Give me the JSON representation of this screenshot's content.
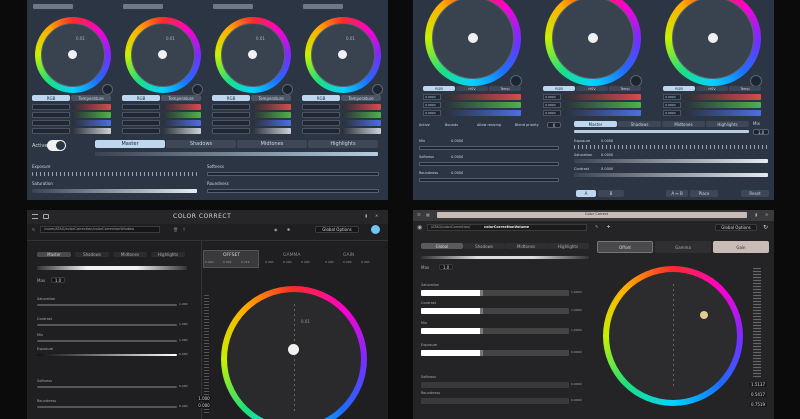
{
  "p1": {
    "wheel_values": [
      "0.01",
      "0.01",
      "0.01",
      "0.01"
    ],
    "wheel_tabs": [
      [
        "RGB",
        "Temperature"
      ],
      [
        "RGB",
        "Temperature"
      ],
      [
        "RGB",
        "Temperature"
      ],
      [
        "RGB",
        "Temperature"
      ]
    ],
    "active_label": "Active",
    "range_tabs": [
      "Master",
      "Shadows",
      "Midtones",
      "Highlights"
    ],
    "exposure": "Exposure",
    "saturation": "Saturation",
    "softness": "Softness",
    "roundness": "Roundness"
  },
  "p2": {
    "wheel_tabs": [
      [
        "RGB",
        "HSV",
        "Temp"
      ],
      [
        "RGB",
        "HSV",
        "Temp"
      ],
      [
        "RGB",
        "HSV",
        "Temp"
      ]
    ],
    "row_values": [
      "0.0000",
      "0.0000",
      "0.0000"
    ],
    "checks": [
      "Active",
      "Bounds",
      "Allow resizing",
      "Blend priority"
    ],
    "priority": "0",
    "range_tabs": [
      "Master",
      "Shadows",
      "Midtones",
      "Highlights"
    ],
    "mix": "Mix",
    "mix_value": "1.0",
    "left_rows": [
      {
        "label": "Mix",
        "value": "0.0000"
      },
      {
        "label": "Softness",
        "value": "0.0000"
      },
      {
        "label": "Roundness",
        "value": "0.0000"
      }
    ],
    "right_rows": [
      {
        "label": "Exposure",
        "value": "0.0000"
      },
      {
        "label": "Saturation",
        "value": "0.0000"
      },
      {
        "label": "Contrast",
        "value": "0.0000"
      }
    ],
    "ab_buttons": [
      "A",
      "B",
      "A ↔ B"
    ],
    "place": "Place",
    "reset": "Reset"
  },
  "p3": {
    "title": "COLOR CORRECT",
    "path": "/room/ATAG/colorCorrection/colorCorrectionWindow",
    "global_options": "Global Options",
    "range_tabs": [
      "Master",
      "Shadows",
      "Midtones",
      "Highlights"
    ],
    "max": "Max",
    "max_value": "1.0",
    "sliders": [
      {
        "label": "Saturation",
        "value": "1.000"
      },
      {
        "label": "Contrast",
        "value": "1.000"
      },
      {
        "label": "Mix",
        "value": "1.000"
      },
      {
        "label": "Exposure",
        "value": "0.000"
      },
      {
        "label": "Softness",
        "value": "0.000"
      },
      {
        "label": "Roundness",
        "value": "0.000"
      }
    ],
    "groups": [
      {
        "name": "OFFSET",
        "values": [
          "0.000",
          "0.002",
          "0.714"
        ]
      },
      {
        "name": "GAMMA",
        "values": [
          "0.000",
          "0.000",
          "0.000"
        ]
      },
      {
        "name": "GAIN",
        "values": [
          "0.000",
          "0.000",
          "0.000"
        ]
      }
    ],
    "wheel_value": "0.01",
    "side_values": [
      "1.000",
      "0.000"
    ]
  },
  "p4": {
    "title": "Color Correct",
    "path_prefix": "/ATAG/colorCorrection/",
    "path_bold": "colorCorrectionVolume",
    "global_options": "Global Options",
    "range_tabs": [
      "Global",
      "Shadows",
      "Midtones",
      "Highlights"
    ],
    "groups": [
      "Offset",
      "Gamma",
      "Gain"
    ],
    "max": "Max",
    "max_value": "1.0",
    "sliders": [
      {
        "label": "Saturation",
        "value": "1.0000"
      },
      {
        "label": "Contrast",
        "value": "1.0000"
      },
      {
        "label": "Mix",
        "value": "1.0000"
      },
      {
        "label": "Exposure",
        "value": "0.0000"
      },
      {
        "label": "Softness",
        "value": "0.0000"
      },
      {
        "label": "Roundness",
        "value": "0.0000"
      }
    ],
    "side_values": [
      "1.5137",
      "0.5417",
      "0.7519"
    ]
  }
}
